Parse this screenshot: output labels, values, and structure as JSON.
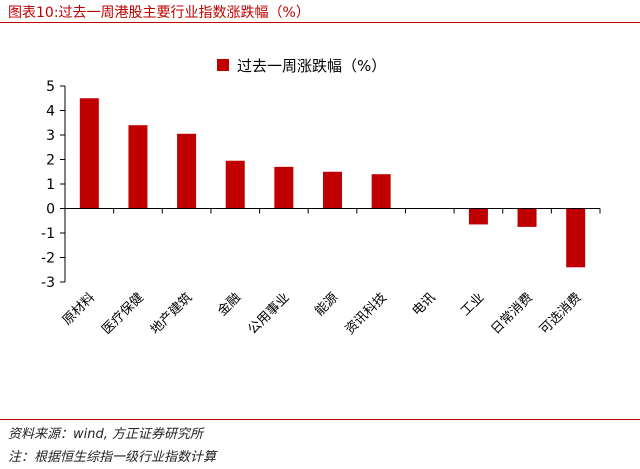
{
  "figure_title": "图表10:过去一周港股主要行业指数涨跌幅（%）",
  "source_text": "资料来源：wind, 方正证券研究所",
  "note_text": "注：根据恒生综指一级行业指数计算",
  "colors": {
    "bar": "#c00000",
    "accent": "#c00000",
    "axis": "#000000"
  },
  "chart_data": {
    "type": "bar",
    "categories": [
      "原材料",
      "医疗保健",
      "地产建筑",
      "金融",
      "公用事业",
      "能源",
      "资讯科技",
      "电讯",
      "工业",
      "日常消费",
      "可选消费"
    ],
    "series": [
      {
        "name": "过去一周涨跌幅（%）",
        "values": [
          4.5,
          3.4,
          3.05,
          1.95,
          1.7,
          1.5,
          1.4,
          0.0,
          -0.65,
          -0.75,
          -2.4
        ]
      }
    ],
    "ylim": [
      -3,
      5
    ],
    "yticks": [
      5,
      4,
      3,
      2,
      1,
      0,
      -1,
      -2,
      -3
    ],
    "legend_position": "top-center",
    "grid": false,
    "xlabel": "",
    "ylabel": ""
  }
}
